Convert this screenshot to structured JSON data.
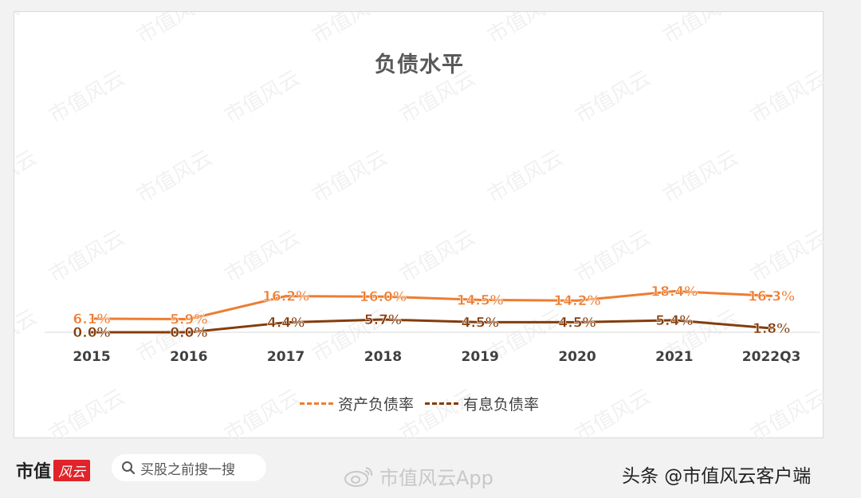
{
  "chart_data": {
    "type": "line",
    "title": "负债水平",
    "categories": [
      "2015",
      "2016",
      "2017",
      "2018",
      "2019",
      "2020",
      "2021",
      "2022Q3"
    ],
    "series": [
      {
        "name": "资产负债率",
        "color": "#ed7d31",
        "values": [
          6.1,
          5.9,
          16.2,
          16.0,
          14.5,
          14.2,
          18.4,
          16.3
        ],
        "labels": [
          "6.1%",
          "5.9%",
          "16.2%",
          "16.0%",
          "14.5%",
          "14.2%",
          "18.4%",
          "16.3%"
        ]
      },
      {
        "name": "有息负债率",
        "color": "#843c0c",
        "values": [
          0.0,
          0.0,
          4.4,
          5.7,
          4.5,
          4.5,
          5.4,
          1.8
        ],
        "labels": [
          "0.0%",
          "0.0%",
          "4.4%",
          "5.7%",
          "4.5%",
          "4.5%",
          "5.4%",
          "1.8%"
        ]
      }
    ],
    "legend_position": "bottom",
    "grid": false
  },
  "watermark_text": "市值风云",
  "footer": {
    "brand": "市值",
    "brand_badge": "风云",
    "search_placeholder": "买股之前搜一搜",
    "weibo_text": "市值风云App",
    "credit": "头条 @市值风云客户端"
  }
}
